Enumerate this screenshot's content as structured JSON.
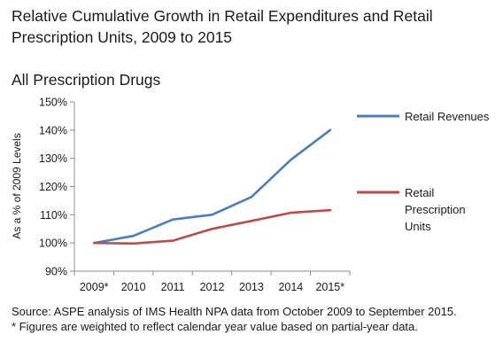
{
  "title": "Relative Cumulative Growth in Retail Expenditures and Retail Prescription Units, 2009 to 2015",
  "subtitle": "All Prescription Drugs",
  "footer": {
    "source": "Source: ASPE analysis of IMS Health NPA data from October 2009 to September 2015.",
    "note": "* Figures are weighted to reflect calendar year value based on partial-year data."
  },
  "chart_data": {
    "type": "line",
    "categories": [
      "2009*",
      "2010",
      "2011",
      "2012",
      "2013",
      "2014",
      "2015*"
    ],
    "ylabel": "As a % of 2009 Levels",
    "ylim": [
      90,
      150
    ],
    "yticks": [
      90,
      100,
      110,
      120,
      130,
      140,
      150
    ],
    "ytick_labels": [
      "90%",
      "100%",
      "110%",
      "120%",
      "130%",
      "140%",
      "150%"
    ],
    "grid": false,
    "legend_position": "right",
    "series": [
      {
        "name": "Retail Revenues",
        "color": "#4a7ebb",
        "values": [
          100,
          102.5,
          108.3,
          110,
          116.3,
          129.5,
          140
        ]
      },
      {
        "name": "Retail Prescription Units",
        "name_lines": [
          "Retail",
          "Prescription",
          "Units"
        ],
        "color": "#be4b48",
        "values": [
          100,
          99.8,
          100.8,
          105,
          107.8,
          110.7,
          111.6
        ]
      }
    ]
  }
}
